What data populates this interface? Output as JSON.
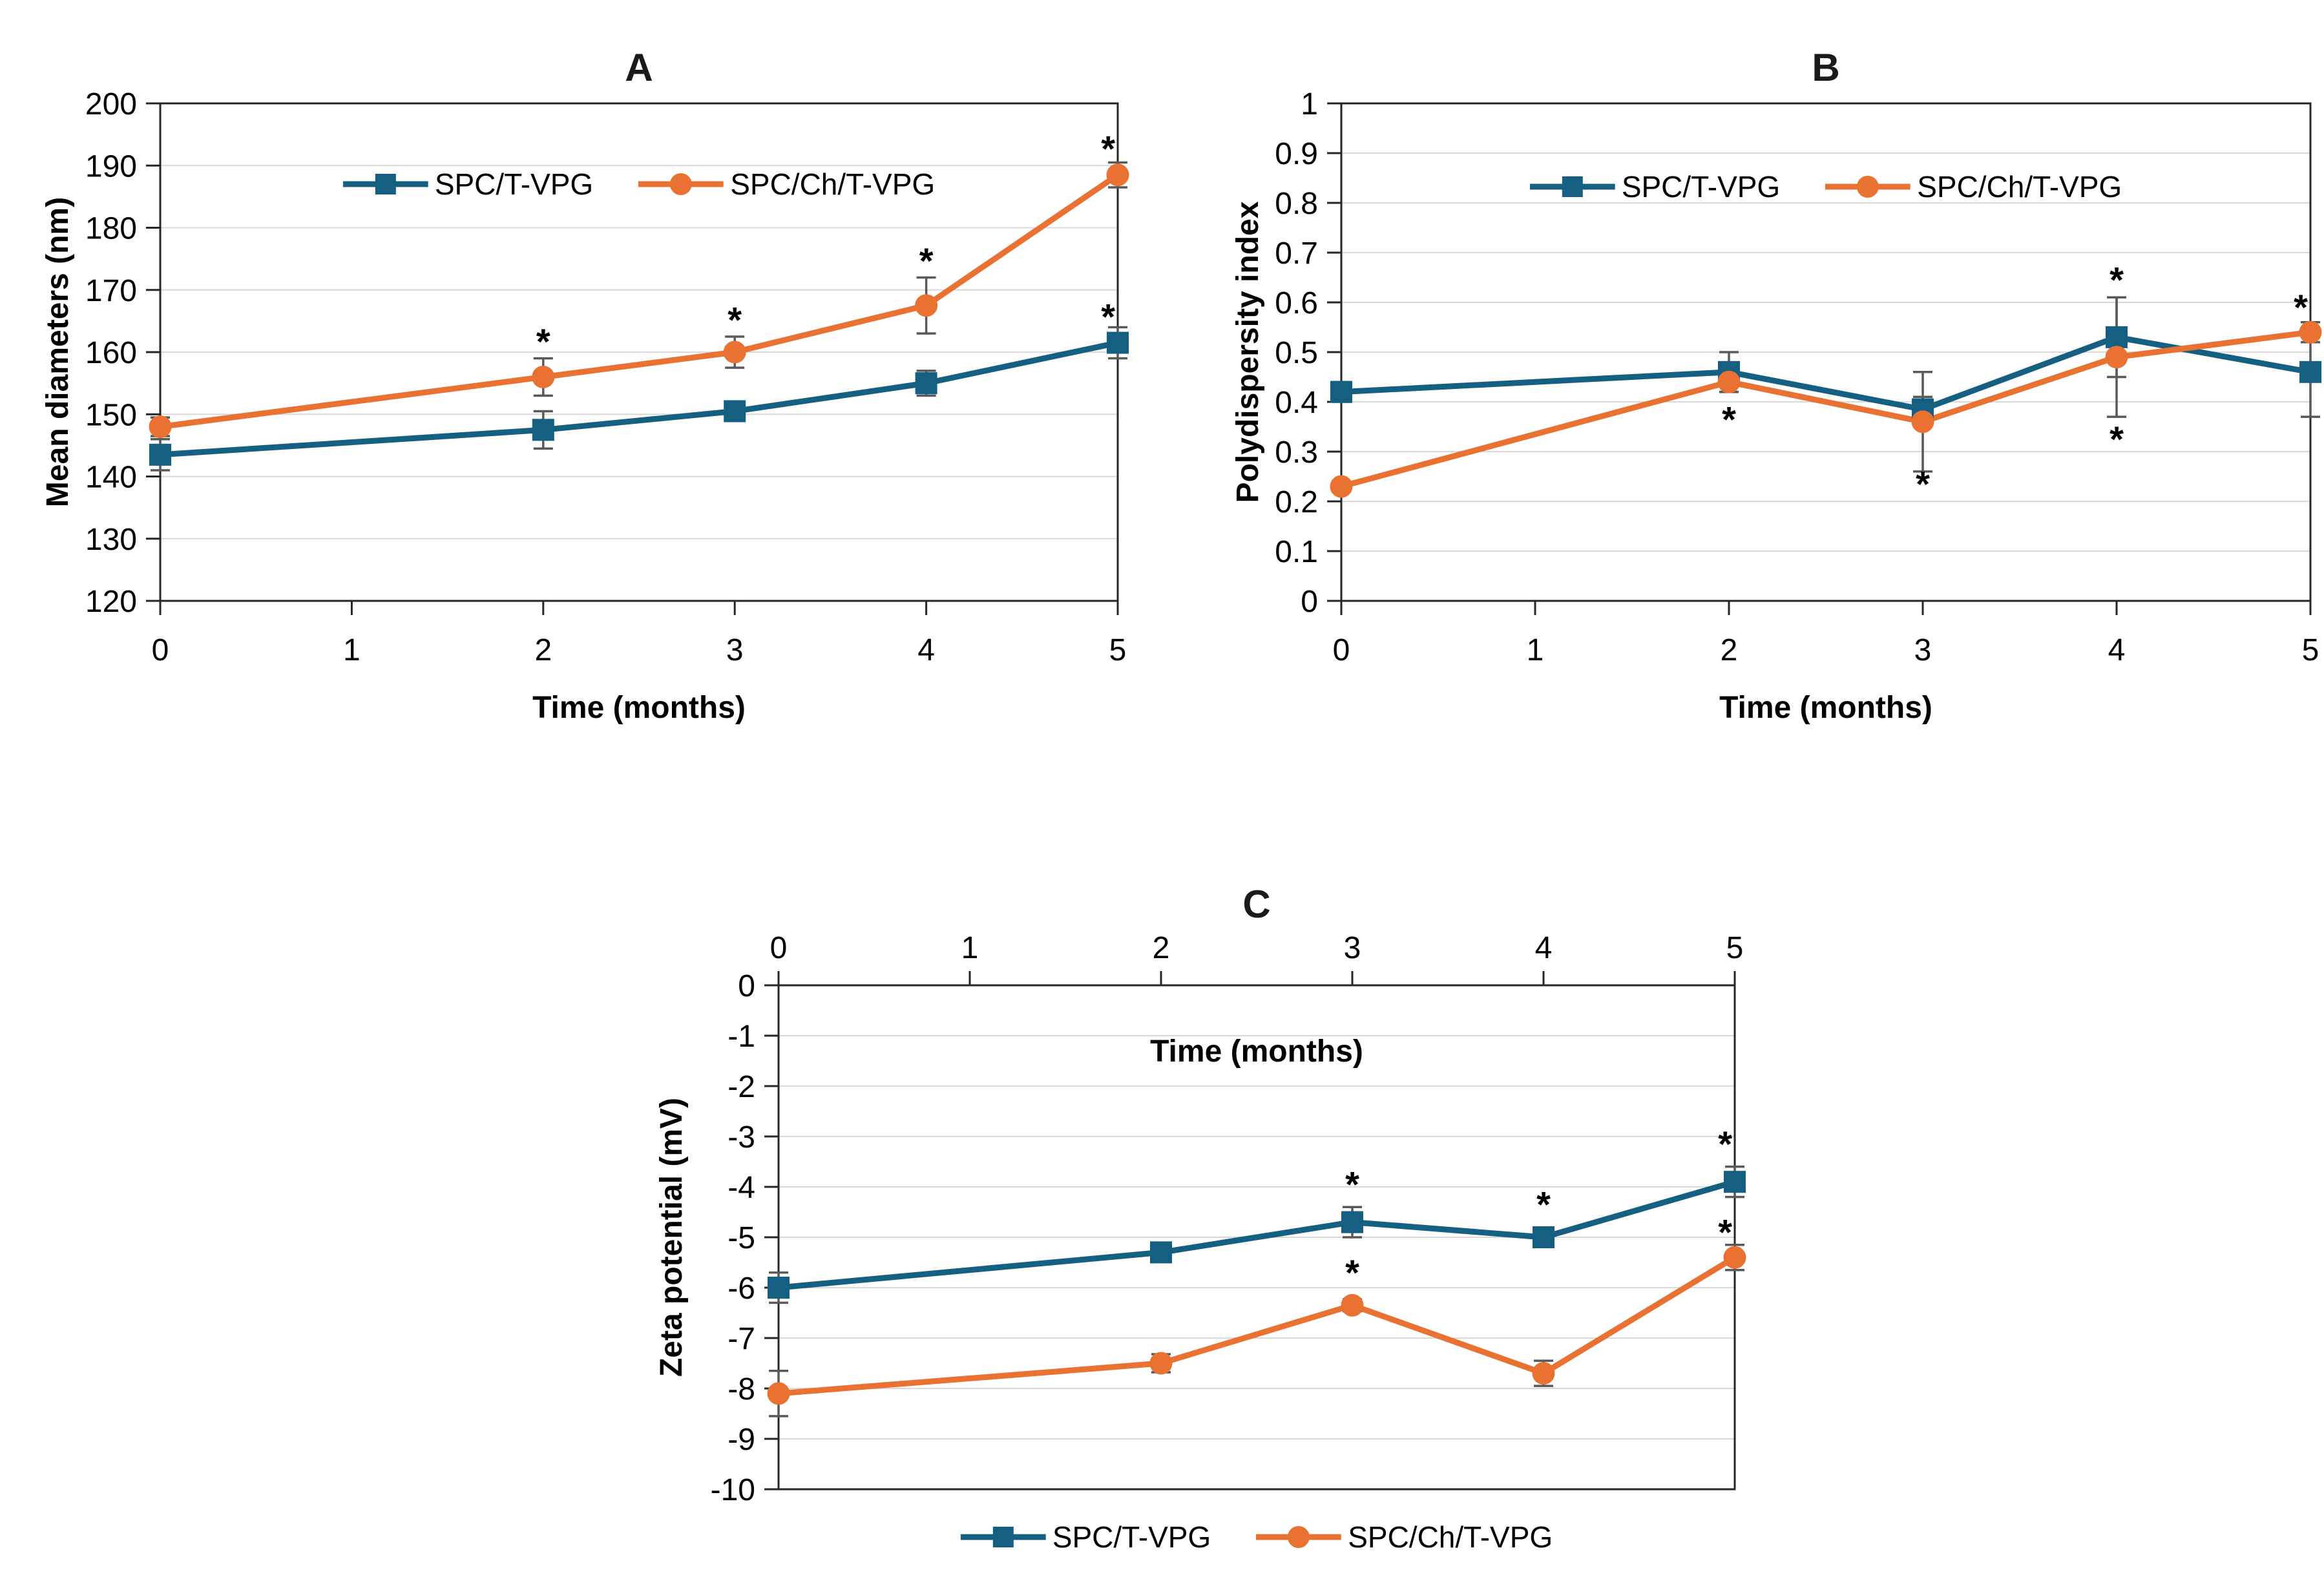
{
  "palette": {
    "series_blue": "#156082",
    "series_orange": "#E97132",
    "error_bar": "#595959",
    "gridline": "#D9D9D9",
    "axis": "#262626",
    "text": "#000000",
    "background": "#FFFFFF"
  },
  "chart_data": [
    {
      "id": "A",
      "type": "line",
      "title": "A",
      "xlabel": "Time (months)",
      "ylabel": "Mean diameters (nm)",
      "x": [
        0,
        2,
        3,
        4,
        5
      ],
      "xticks": [
        0,
        1,
        2,
        3,
        4,
        5
      ],
      "xlim": [
        0,
        5
      ],
      "ylim": [
        120,
        200
      ],
      "ystep": 10,
      "grid": true,
      "x_axis_position": "bottom",
      "legend_position": "inside-top",
      "series": [
        {
          "name": "SPC/T-VPG",
          "marker": "square",
          "color": "#156082",
          "values": [
            143.5,
            147.5,
            150.5,
            155,
            161.5
          ],
          "errors": [
            2.5,
            3,
            1.5,
            2,
            2.5
          ]
        },
        {
          "name": "SPC/Ch/T-VPG",
          "marker": "circle",
          "color": "#E97132",
          "values": [
            148,
            156,
            160,
            167.5,
            188.5
          ],
          "errors": [
            1.5,
            3,
            2.5,
            4.5,
            2
          ]
        }
      ],
      "annotations": [
        {
          "x": 2,
          "y": 162.5,
          "label": "*"
        },
        {
          "x": 3,
          "y": 166,
          "label": "*"
        },
        {
          "x": 4,
          "y": 175.5,
          "label": "*"
        },
        {
          "x": 4.95,
          "y": 193.5,
          "label": "*"
        },
        {
          "x": 4.95,
          "y": 166.5,
          "label": "*"
        }
      ]
    },
    {
      "id": "B",
      "type": "line",
      "title": "B",
      "xlabel": "Time (months)",
      "ylabel": "Polydispersity index",
      "x": [
        0,
        2,
        3,
        4,
        5
      ],
      "xticks": [
        0,
        1,
        2,
        3,
        4,
        5
      ],
      "xlim": [
        0,
        5
      ],
      "ylim": [
        0,
        1
      ],
      "ystep": 0.1,
      "grid": true,
      "x_axis_position": "bottom",
      "legend_position": "inside-top",
      "series": [
        {
          "name": "SPC/T-VPG",
          "marker": "square",
          "color": "#156082",
          "values": [
            0.42,
            0.46,
            0.385,
            0.53,
            0.46
          ],
          "errors": [
            0.02,
            0.04,
            0.025,
            0.08,
            0.09
          ]
        },
        {
          "name": "SPC/Ch/T-VPG",
          "marker": "circle",
          "color": "#E97132",
          "values": [
            0.23,
            0.44,
            0.36,
            0.49,
            0.54
          ],
          "errors": [
            0.01,
            0.02,
            0.1,
            0.12,
            0.02
          ]
        }
      ],
      "annotations": [
        {
          "x": 2,
          "y": 0.375,
          "label": "*"
        },
        {
          "x": 3,
          "y": 0.245,
          "label": "*"
        },
        {
          "x": 4,
          "y": 0.655,
          "label": "*"
        },
        {
          "x": 4,
          "y": 0.335,
          "label": "*"
        },
        {
          "x": 4.95,
          "y": 0.6,
          "label": "*"
        }
      ]
    },
    {
      "id": "C",
      "type": "line",
      "title": "C",
      "xlabel": "Time (months)",
      "ylabel": "Zeta potential (mV)",
      "x": [
        0,
        2,
        3,
        4,
        5
      ],
      "xticks": [
        0,
        1,
        2,
        3,
        4,
        5
      ],
      "xlim": [
        0,
        5
      ],
      "ylim": [
        -10,
        0
      ],
      "ystep": 1,
      "grid": true,
      "x_axis_position": "top",
      "xlabel_position": "inside-top",
      "legend_position": "below",
      "series": [
        {
          "name": "SPC/T-VPG",
          "marker": "square",
          "color": "#156082",
          "values": [
            -6,
            -5.3,
            -4.7,
            -5,
            -3.9
          ],
          "errors": [
            0.3,
            0.12,
            0.3,
            0.18,
            0.3
          ]
        },
        {
          "name": "SPC/Ch/T-VPG",
          "marker": "circle",
          "color": "#E97132",
          "values": [
            -8.1,
            -7.5,
            -6.35,
            -7.7,
            -5.4
          ],
          "errors": [
            0.45,
            0.18,
            0.12,
            0.25,
            0.25
          ]
        }
      ],
      "annotations": [
        {
          "x": 3,
          "y": -3.85,
          "label": "*"
        },
        {
          "x": 3,
          "y": -5.6,
          "label": "*"
        },
        {
          "x": 4,
          "y": -4.25,
          "label": "*"
        },
        {
          "x": 4.95,
          "y": -3.05,
          "label": "*"
        },
        {
          "x": 4.95,
          "y": -4.8,
          "label": "*"
        }
      ]
    }
  ]
}
